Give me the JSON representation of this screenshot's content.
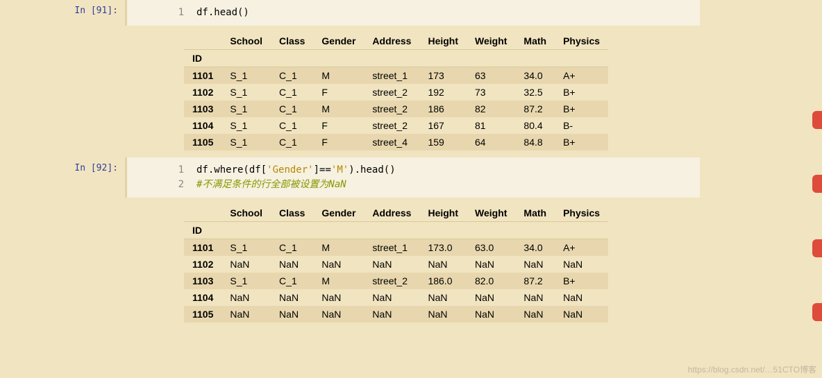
{
  "side_button_color": "#de4b3a",
  "side_button_positions": [
    160,
    252,
    345,
    437
  ],
  "cells": [
    {
      "prompt": "In [91]:",
      "code_lines": [
        {
          "n": "1",
          "plain": "df.head()"
        }
      ]
    },
    {
      "prompt": "In [92]:",
      "code_lines": [
        {
          "n": "1",
          "segments": [
            {
              "t": "df.where(df[",
              "c": ""
            },
            {
              "t": "'Gender'",
              "c": "str"
            },
            {
              "t": "]==",
              "c": ""
            },
            {
              "t": "'M'",
              "c": "str"
            },
            {
              "t": ").head()",
              "c": ""
            }
          ]
        },
        {
          "n": "2",
          "segments": [
            {
              "t": "#不满足条件的行全部被设置为NaN",
              "c": "comment"
            }
          ]
        }
      ]
    }
  ],
  "tables": [
    {
      "index_name": "ID",
      "columns": [
        "School",
        "Class",
        "Gender",
        "Address",
        "Height",
        "Weight",
        "Math",
        "Physics"
      ],
      "rows": [
        {
          "id": "1101",
          "cells": [
            "S_1",
            "C_1",
            "M",
            "street_1",
            "173",
            "63",
            "34.0",
            "A+"
          ]
        },
        {
          "id": "1102",
          "cells": [
            "S_1",
            "C_1",
            "F",
            "street_2",
            "192",
            "73",
            "32.5",
            "B+"
          ]
        },
        {
          "id": "1103",
          "cells": [
            "S_1",
            "C_1",
            "M",
            "street_2",
            "186",
            "82",
            "87.2",
            "B+"
          ]
        },
        {
          "id": "1104",
          "cells": [
            "S_1",
            "C_1",
            "F",
            "street_2",
            "167",
            "81",
            "80.4",
            "B-"
          ]
        },
        {
          "id": "1105",
          "cells": [
            "S_1",
            "C_1",
            "F",
            "street_4",
            "159",
            "64",
            "84.8",
            "B+"
          ]
        }
      ]
    },
    {
      "index_name": "ID",
      "columns": [
        "School",
        "Class",
        "Gender",
        "Address",
        "Height",
        "Weight",
        "Math",
        "Physics"
      ],
      "rows": [
        {
          "id": "1101",
          "cells": [
            "S_1",
            "C_1",
            "M",
            "street_1",
            "173.0",
            "63.0",
            "34.0",
            "A+"
          ]
        },
        {
          "id": "1102",
          "cells": [
            "NaN",
            "NaN",
            "NaN",
            "NaN",
            "NaN",
            "NaN",
            "NaN",
            "NaN"
          ]
        },
        {
          "id": "1103",
          "cells": [
            "S_1",
            "C_1",
            "M",
            "street_2",
            "186.0",
            "82.0",
            "87.2",
            "B+"
          ]
        },
        {
          "id": "1104",
          "cells": [
            "NaN",
            "NaN",
            "NaN",
            "NaN",
            "NaN",
            "NaN",
            "NaN",
            "NaN"
          ]
        },
        {
          "id": "1105",
          "cells": [
            "NaN",
            "NaN",
            "NaN",
            "NaN",
            "NaN",
            "NaN",
            "NaN",
            "NaN"
          ]
        }
      ]
    }
  ],
  "watermark": "https://blog.csdn.net/…51CTO博客"
}
